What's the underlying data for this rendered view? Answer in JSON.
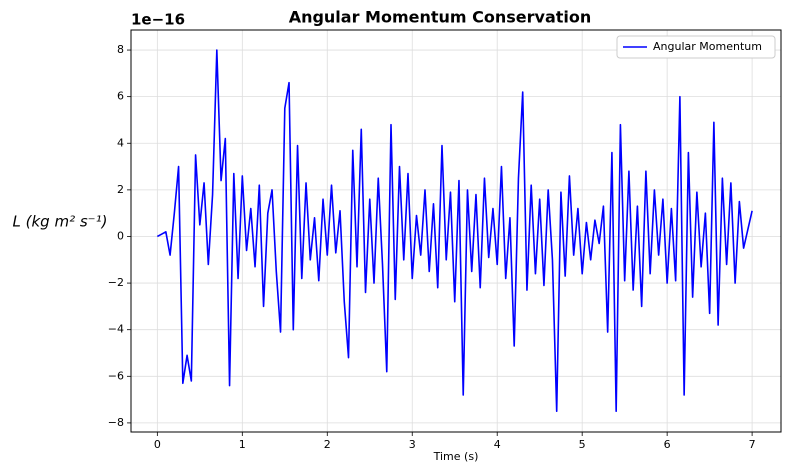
{
  "chart_data": {
    "type": "line",
    "title": "Angular Momentum Conservation",
    "xlabel": "Time (s)",
    "ylabel": "L (kg m² s⁻¹)",
    "offset_label": "1e−16",
    "x": [
      0,
      0.05,
      0.1,
      0.15,
      0.2,
      0.25,
      0.3,
      0.35,
      0.4,
      0.45,
      0.5,
      0.55,
      0.6,
      0.65,
      0.7,
      0.75,
      0.8,
      0.85,
      0.9,
      0.95,
      1,
      1.05,
      1.1,
      1.15,
      1.2,
      1.25,
      1.3,
      1.35,
      1.4,
      1.45,
      1.5,
      1.55,
      1.6,
      1.65,
      1.7,
      1.75,
      1.8,
      1.85,
      1.9,
      1.95,
      2,
      2.05,
      2.1,
      2.15,
      2.2,
      2.25,
      2.3,
      2.35,
      2.4,
      2.45,
      2.5,
      2.55,
      2.6,
      2.65,
      2.7,
      2.75,
      2.8,
      2.85,
      2.9,
      2.95,
      3,
      3.05,
      3.1,
      3.15,
      3.2,
      3.25,
      3.3,
      3.35,
      3.4,
      3.45,
      3.5,
      3.55,
      3.6,
      3.65,
      3.7,
      3.75,
      3.8,
      3.85,
      3.9,
      3.95,
      4,
      4.05,
      4.1,
      4.15,
      4.2,
      4.25,
      4.3,
      4.35,
      4.4,
      4.45,
      4.5,
      4.55,
      4.6,
      4.65,
      4.7,
      4.75,
      4.8,
      4.85,
      4.9,
      4.95,
      5,
      5.05,
      5.1,
      5.15,
      5.2,
      5.25,
      5.3,
      5.35,
      5.4,
      5.45,
      5.5,
      5.55,
      5.6,
      5.65,
      5.7,
      5.75,
      5.8,
      5.85,
      5.9,
      5.95,
      6,
      6.05,
      6.1,
      6.15,
      6.2,
      6.25,
      6.3,
      6.35,
      6.4,
      6.45,
      6.5,
      6.55,
      6.6,
      6.65,
      6.7,
      6.75,
      6.8,
      6.85,
      6.9,
      6.95,
      7
    ],
    "series": [
      {
        "name": "Angular Momentum",
        "color": "#0000ff",
        "values": [
          0,
          0.1,
          0.2,
          -0.8,
          1.0,
          3.0,
          -6.3,
          -5.1,
          -6.2,
          3.5,
          0.5,
          2.3,
          -1.2,
          1.8,
          8.0,
          2.4,
          4.2,
          -6.4,
          2.7,
          -1.8,
          2.6,
          -0.6,
          1.2,
          -1.3,
          2.2,
          -3.0,
          1.0,
          2.0,
          -1.5,
          -4.1,
          5.5,
          6.6,
          -4.0,
          3.9,
          -1.8,
          2.3,
          -1.0,
          0.8,
          -1.9,
          1.6,
          -0.8,
          2.2,
          -0.7,
          1.1,
          -2.8,
          -5.2,
          3.7,
          -1.3,
          4.6,
          -2.4,
          1.6,
          -2.0,
          2.5,
          -1.2,
          -5.8,
          4.8,
          -2.7,
          3.0,
          -1.0,
          2.7,
          -1.8,
          0.9,
          -0.8,
          2.0,
          -1.5,
          1.4,
          -2.2,
          3.9,
          -1.0,
          1.9,
          -2.8,
          2.4,
          -6.8,
          2.0,
          -1.5,
          1.8,
          -2.2,
          2.5,
          -0.9,
          1.2,
          -1.2,
          3.0,
          -1.8,
          0.8,
          -4.7,
          2.5,
          6.2,
          -2.3,
          2.2,
          -1.6,
          1.6,
          -2.1,
          2.0,
          -1.0,
          -7.5,
          1.9,
          -1.7,
          2.6,
          -0.8,
          1.2,
          -1.6,
          0.6,
          -1.0,
          0.7,
          -0.3,
          1.3,
          -4.1,
          3.6,
          -7.5,
          4.8,
          -1.9,
          2.8,
          -2.3,
          1.3,
          -3.0,
          2.8,
          -1.6,
          2.0,
          -0.8,
          1.6,
          -2.0,
          1.2,
          -1.9,
          6.0,
          -6.8,
          3.6,
          -2.6,
          1.9,
          -1.3,
          1.0,
          -3.3,
          4.9,
          -3.8,
          2.5,
          -1.2,
          2.3,
          -2.0,
          1.5,
          -0.5,
          0.3,
          1.1
        ]
      }
    ],
    "xlim": [
      -0.31,
      7.34
    ],
    "ylim": [
      -8.39,
      8.86
    ],
    "xticks": [
      0,
      1,
      2,
      3,
      4,
      5,
      6,
      7
    ],
    "yticks": [
      {
        "value": -8,
        "label": "−8"
      },
      {
        "value": -6,
        "label": "−6"
      },
      {
        "value": -4,
        "label": "−4"
      },
      {
        "value": -2,
        "label": "−2"
      },
      0,
      2,
      4,
      6,
      8
    ],
    "grid": true,
    "legend": "upper right"
  }
}
